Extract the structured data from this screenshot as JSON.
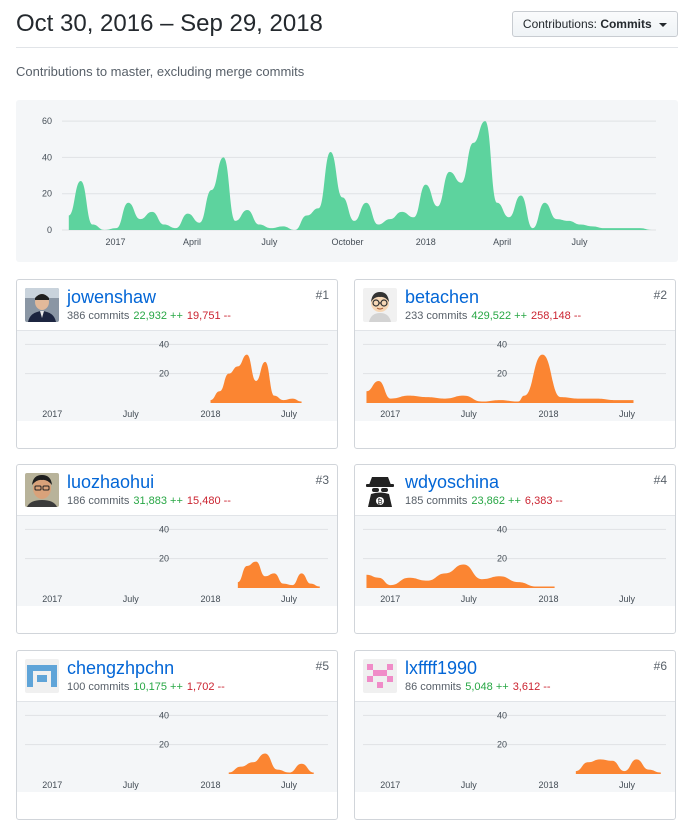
{
  "header": {
    "date_range": "Oct 30, 2016 – Sep 29, 2018",
    "select_prefix": "Contributions:",
    "select_value": "Commits"
  },
  "subtitle": "Contributions to master, excluding merge commits",
  "colors": {
    "main_area": "#5dd39e",
    "user_area": "#fb8532",
    "link": "#0366d6",
    "additions": "#28a745",
    "deletions": "#cb2431"
  },
  "chart_data": [
    {
      "type": "area",
      "title": "",
      "x": [
        "2016-11-07",
        "2016-11-21",
        "2016-12-05",
        "2016-12-19",
        "2017-01-02",
        "2017-01-16",
        "2017-01-30",
        "2017-02-13",
        "2017-02-27",
        "2017-03-13",
        "2017-03-27",
        "2017-04-10",
        "2017-04-24",
        "2017-05-08",
        "2017-05-22",
        "2017-06-05",
        "2017-06-19",
        "2017-07-03",
        "2017-07-17",
        "2017-07-31",
        "2017-08-14",
        "2017-08-28",
        "2017-09-11",
        "2017-09-25",
        "2017-10-09",
        "2017-10-23",
        "2017-11-06",
        "2017-11-20",
        "2017-12-04",
        "2017-12-18",
        "2018-01-01",
        "2018-01-15",
        "2018-01-29",
        "2018-02-12",
        "2018-02-26",
        "2018-03-12",
        "2018-03-26",
        "2018-04-09",
        "2018-04-23",
        "2018-05-07",
        "2018-05-21",
        "2018-06-04",
        "2018-06-18",
        "2018-07-02",
        "2018-07-16",
        "2018-07-30",
        "2018-08-13",
        "2018-08-27",
        "2018-09-10",
        "2018-09-24"
      ],
      "series": [
        {
          "values": [
            8,
            27,
            3,
            0,
            1,
            15,
            6,
            10,
            3,
            1,
            9,
            4,
            22,
            40,
            5,
            11,
            3,
            1,
            2,
            0,
            8,
            12,
            43,
            18,
            5,
            15,
            3,
            6,
            10,
            7,
            25,
            13,
            32,
            26,
            48,
            60,
            15,
            7,
            19,
            1,
            15,
            6,
            5,
            3,
            2,
            1,
            1,
            1,
            1,
            0
          ]
        }
      ],
      "x_ticks": [
        "2017",
        "April",
        "July",
        "October",
        "2018",
        "April",
        "July"
      ],
      "y_ticks": [
        "0",
        "20",
        "40",
        "60"
      ],
      "ylim": [
        0,
        65
      ],
      "grid": true
    },
    {
      "type": "area",
      "title": "",
      "x": [
        "2018-01-01",
        "2018-01-22",
        "2018-02-12",
        "2018-03-05",
        "2018-03-26",
        "2018-04-16",
        "2018-05-07",
        "2018-05-28",
        "2018-06-18",
        "2018-07-09",
        "2018-07-30"
      ],
      "series": [
        {
          "values": [
            2,
            8,
            20,
            25,
            33,
            15,
            28,
            5,
            2,
            3,
            1
          ]
        }
      ],
      "x_ticks": [
        "2017",
        "July",
        "2018",
        "July"
      ],
      "y_ticks": [
        "20",
        "40"
      ],
      "ylim": [
        0,
        45
      ],
      "grid": true
    },
    {
      "type": "area",
      "title": "",
      "x": [
        "2016-11-07",
        "2016-12-05",
        "2017-01-02",
        "2017-02-13",
        "2017-03-27",
        "2017-05-08",
        "2017-06-19",
        "2017-07-31",
        "2017-09-11",
        "2017-10-23",
        "2017-11-06",
        "2017-12-18",
        "2018-01-29",
        "2018-03-12",
        "2018-04-23",
        "2018-06-04",
        "2018-07-16"
      ],
      "series": [
        {
          "values": [
            8,
            15,
            3,
            5,
            4,
            3,
            5,
            1,
            2,
            1,
            5,
            33,
            4,
            3,
            3,
            2,
            2
          ]
        }
      ],
      "x_ticks": [
        "2017",
        "July",
        "2018",
        "July"
      ],
      "y_ticks": [
        "20",
        "40"
      ],
      "ylim": [
        0,
        45
      ],
      "grid": true
    },
    {
      "type": "area",
      "title": "",
      "x": [
        "2018-03-05",
        "2018-03-26",
        "2018-04-16",
        "2018-05-07",
        "2018-05-28",
        "2018-06-18",
        "2018-07-09",
        "2018-07-30",
        "2018-08-20",
        "2018-09-10"
      ],
      "series": [
        {
          "values": [
            4,
            15,
            18,
            8,
            10,
            3,
            2,
            10,
            3,
            1
          ]
        }
      ],
      "x_ticks": [
        "2017",
        "July",
        "2018",
        "July"
      ],
      "y_ticks": [
        "20",
        "40"
      ],
      "ylim": [
        0,
        45
      ],
      "grid": true
    },
    {
      "type": "area",
      "title": "",
      "x": [
        "2016-11-07",
        "2016-12-05",
        "2017-01-02",
        "2017-02-13",
        "2017-03-27",
        "2017-05-08",
        "2017-06-19",
        "2017-07-31",
        "2017-09-11",
        "2017-10-23",
        "2017-12-04",
        "2018-01-15"
      ],
      "series": [
        {
          "values": [
            9,
            7,
            2,
            7,
            5,
            10,
            16,
            6,
            8,
            4,
            1,
            1
          ]
        }
      ],
      "x_ticks": [
        "2017",
        "July",
        "2018",
        "July"
      ],
      "y_ticks": [
        "20",
        "40"
      ],
      "ylim": [
        0,
        45
      ],
      "grid": true
    },
    {
      "type": "area",
      "title": "",
      "x": [
        "2018-02-12",
        "2018-03-12",
        "2018-04-09",
        "2018-05-07",
        "2018-06-04",
        "2018-07-02",
        "2018-07-30",
        "2018-08-27"
      ],
      "series": [
        {
          "values": [
            1,
            5,
            8,
            14,
            3,
            1,
            7,
            1
          ]
        }
      ],
      "x_ticks": [
        "2017",
        "July",
        "2018",
        "July"
      ],
      "y_ticks": [
        "20",
        "40"
      ],
      "ylim": [
        0,
        45
      ],
      "grid": true
    },
    {
      "type": "area",
      "title": "",
      "x": [
        "2018-03-05",
        "2018-04-02",
        "2018-04-30",
        "2018-05-28",
        "2018-06-25",
        "2018-07-23",
        "2018-08-20",
        "2018-09-17"
      ],
      "series": [
        {
          "values": [
            2,
            8,
            10,
            9,
            2,
            10,
            3,
            1
          ]
        }
      ],
      "x_ticks": [
        "2017",
        "July",
        "2018",
        "July"
      ],
      "y_ticks": [
        "20",
        "40"
      ],
      "ylim": [
        0,
        45
      ],
      "grid": true
    }
  ],
  "contributors": [
    {
      "name": "jowenshaw",
      "commits": "386 commits",
      "additions": "22,932 ++",
      "deletions": "19,751 --",
      "rank": "#1",
      "avatar": "person-photo"
    },
    {
      "name": "betachen",
      "commits": "233 commits",
      "additions": "429,522 ++",
      "deletions": "258,148 --",
      "rank": "#2",
      "avatar": "cartoon-glasses"
    },
    {
      "name": "luozhaohui",
      "commits": "186 commits",
      "additions": "31,883 ++",
      "deletions": "15,480 --",
      "rank": "#3",
      "avatar": "person-photo"
    },
    {
      "name": "wdyoschina",
      "commits": "185 commits",
      "additions": "23,862 ++",
      "deletions": "6,383 --",
      "rank": "#4",
      "avatar": "bitcoin-spy"
    },
    {
      "name": "chengzhpchn",
      "commits": "100 commits",
      "additions": "10,175 ++",
      "deletions": "1,702 --",
      "rank": "#5",
      "avatar": "blue-identicon"
    },
    {
      "name": "lxffff1990",
      "commits": "86 commits",
      "additions": "5,048 ++",
      "deletions": "3,612 --",
      "rank": "#6",
      "avatar": "pink-identicon"
    }
  ]
}
